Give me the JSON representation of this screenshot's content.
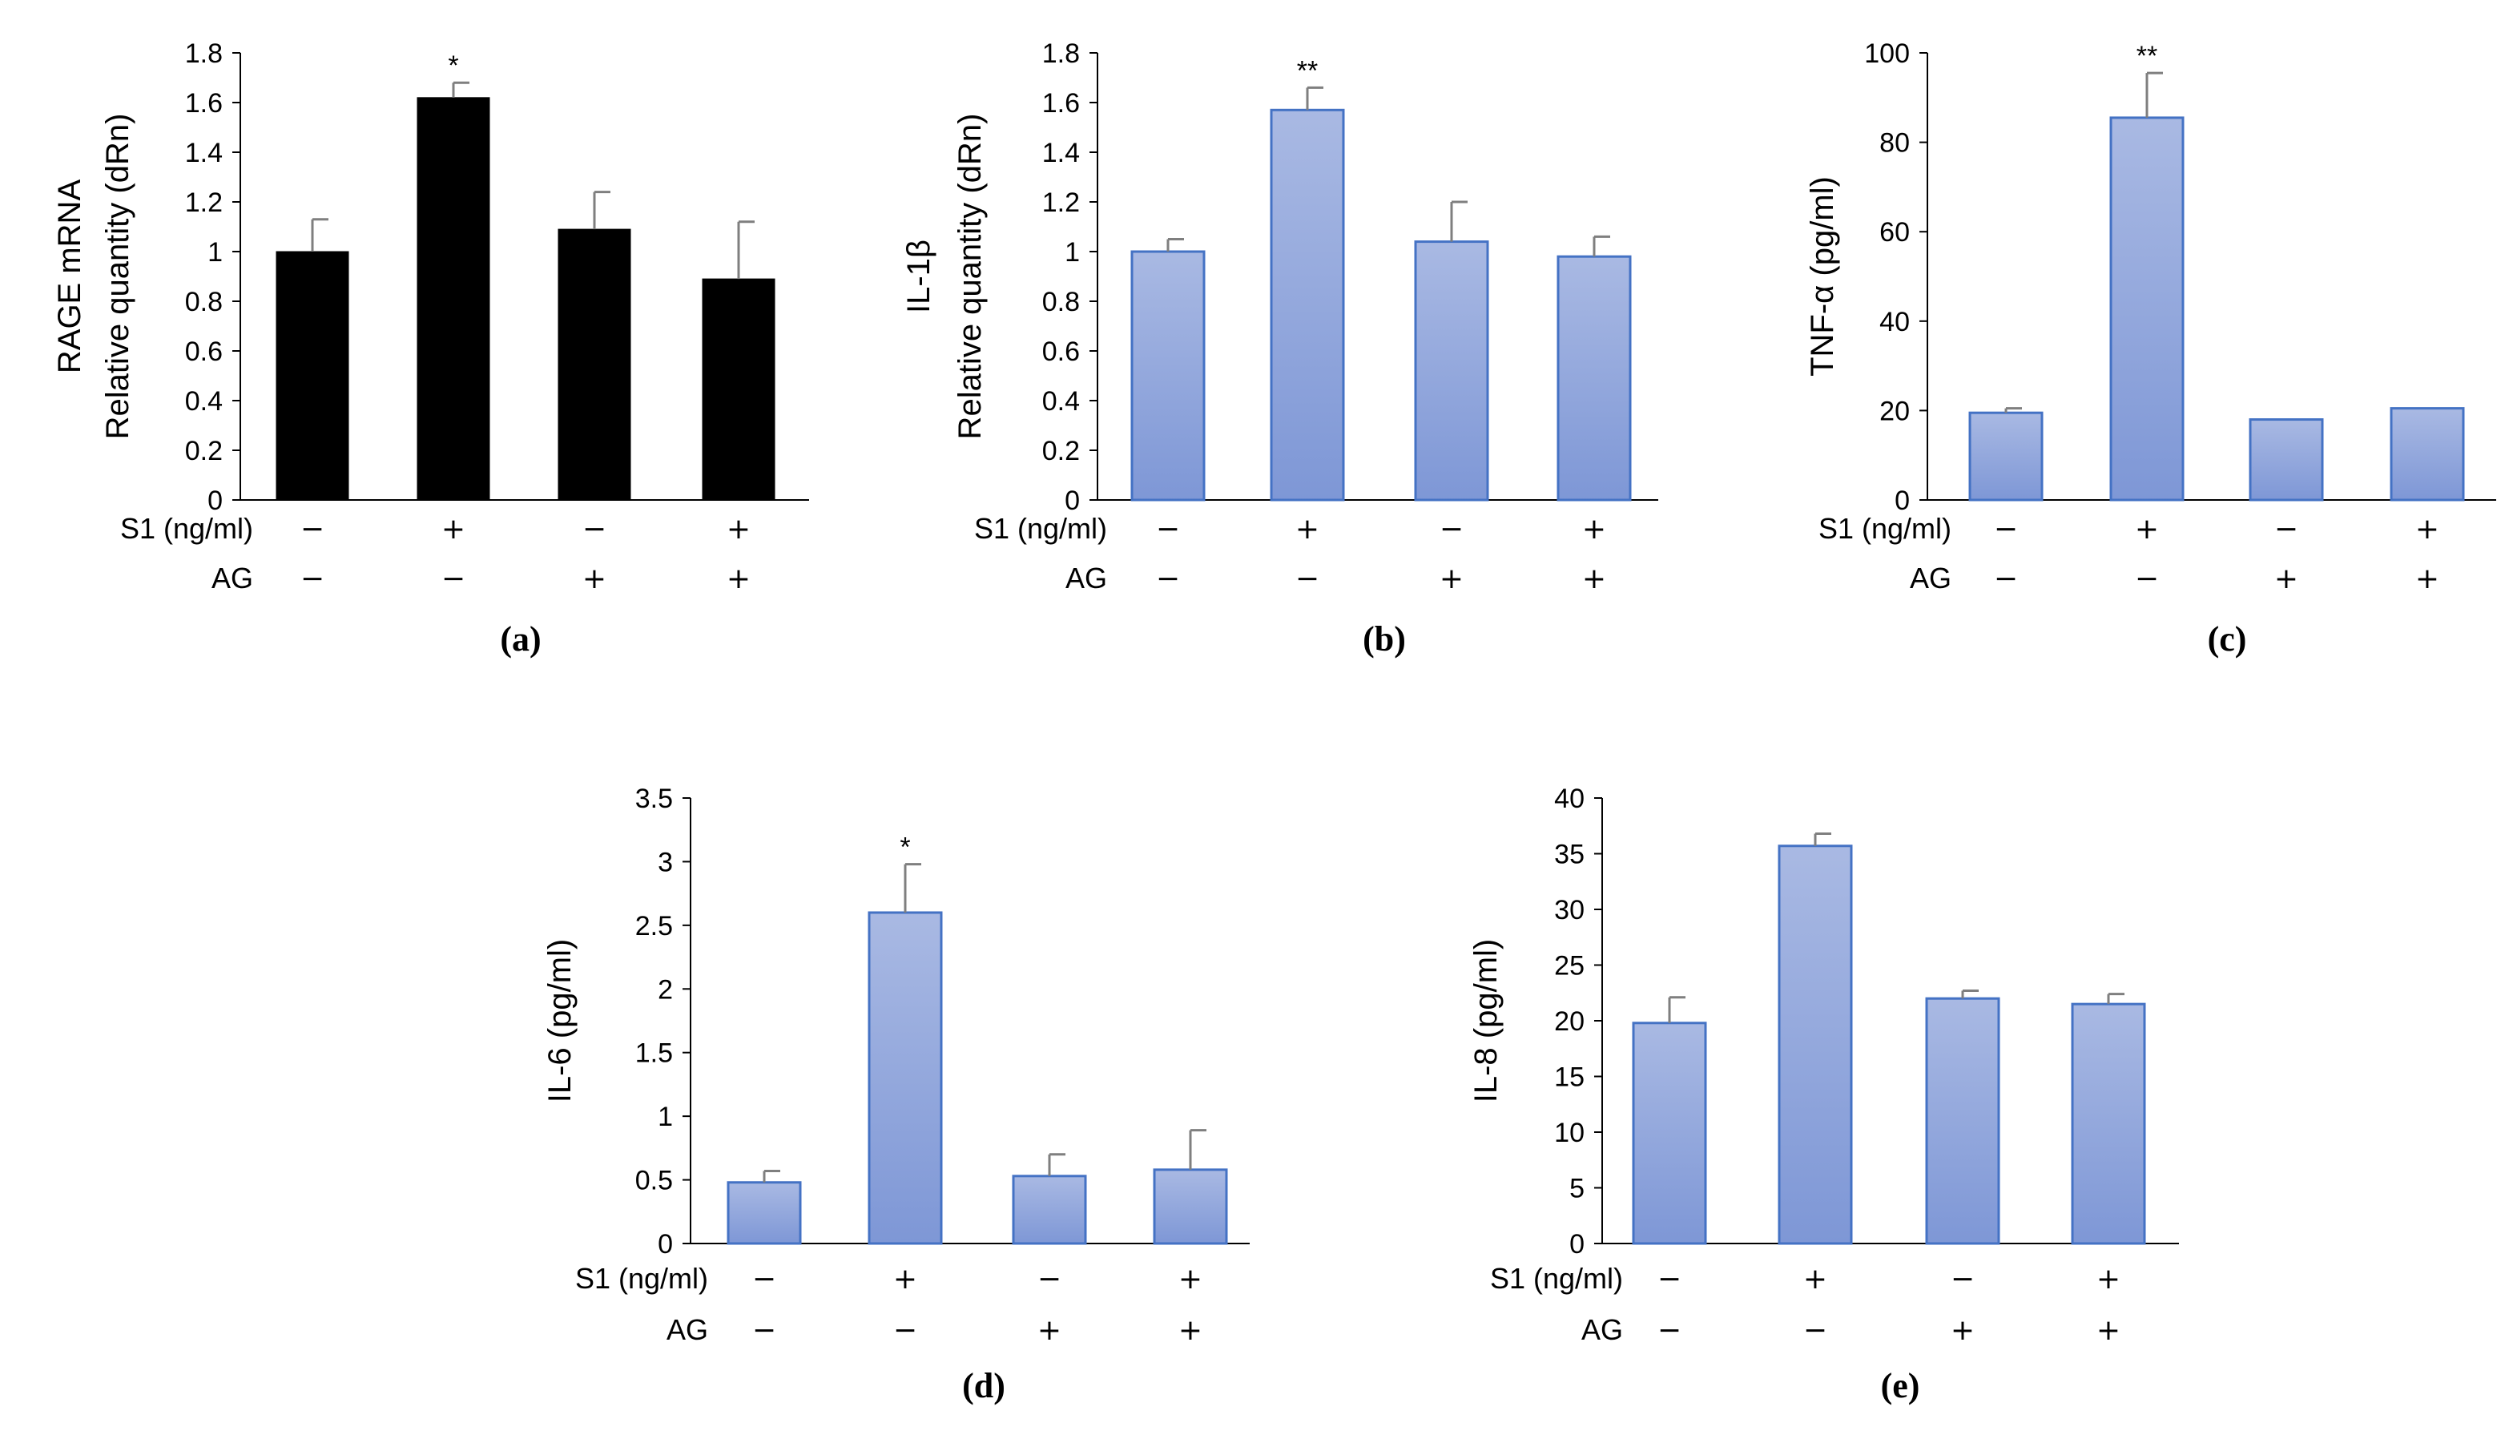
{
  "chart_data": [
    {
      "type": "bar",
      "panel_label": "(a)",
      "ylabel_lines": [
        "RAGE mRNA",
        "Relative quantity (dRn)"
      ],
      "yticks": [
        "0",
        "0.2",
        "0.4",
        "0.6",
        "0.8",
        "1",
        "1.2",
        "1.4",
        "1.6",
        "1.8"
      ],
      "ylim": [
        0,
        1.8
      ],
      "condition_rows": [
        {
          "label": "S1 (ng/ml)",
          "signs": [
            "−",
            "+",
            "−",
            "+"
          ]
        },
        {
          "label": "AG",
          "signs": [
            "−",
            "−",
            "+",
            "+"
          ]
        }
      ],
      "values": [
        1.0,
        1.62,
        1.09,
        0.89
      ],
      "errors": [
        0.13,
        0.06,
        0.15,
        0.23
      ],
      "significance": [
        "",
        "*",
        "",
        ""
      ],
      "bar_color": "#000000",
      "bar_style": "solid"
    },
    {
      "type": "bar",
      "panel_label": "(b)",
      "ylabel_lines": [
        "IL-1β",
        "Relative quantity (dRn)"
      ],
      "yticks": [
        "0",
        "0.2",
        "0.4",
        "0.6",
        "0.8",
        "1",
        "1.2",
        "1.4",
        "1.6",
        "1.8"
      ],
      "ylim": [
        0,
        1.8
      ],
      "condition_rows": [
        {
          "label": "S1 (ng/ml)",
          "signs": [
            "−",
            "+",
            "−",
            "+"
          ]
        },
        {
          "label": "AG",
          "signs": [
            "−",
            "−",
            "+",
            "+"
          ]
        }
      ],
      "values": [
        1.0,
        1.57,
        1.04,
        0.98
      ],
      "errors": [
        0.05,
        0.09,
        0.16,
        0.08
      ],
      "significance": [
        "",
        "**",
        "",
        ""
      ],
      "bar_color": "#8DA3DA",
      "bar_style": "gradient"
    },
    {
      "type": "bar",
      "panel_label": "(c)",
      "ylabel_lines": [
        "TNF-α (pg/ml)"
      ],
      "yticks": [
        "0",
        "20",
        "40",
        "60",
        "80",
        "100"
      ],
      "ylim": [
        0,
        100
      ],
      "condition_rows": [
        {
          "label": "S1 (ng/ml)",
          "signs": [
            "−",
            "+",
            "−",
            "+"
          ]
        },
        {
          "label": "AG",
          "signs": [
            "−",
            "−",
            "+",
            "+"
          ]
        }
      ],
      "values": [
        19.5,
        85.5,
        18.0,
        20.5
      ],
      "errors": [
        1.0,
        10.0,
        0,
        0
      ],
      "significance": [
        "",
        "**",
        "",
        ""
      ],
      "bar_color": "#8DA3DA",
      "bar_style": "gradient"
    },
    {
      "type": "bar",
      "panel_label": "(d)",
      "ylabel_lines": [
        "IL-6 (pg/ml)"
      ],
      "yticks": [
        "0",
        "0.5",
        "1",
        "1.5",
        "2",
        "2.5",
        "3",
        "3.5"
      ],
      "ylim": [
        0,
        3.5
      ],
      "condition_rows": [
        {
          "label": "S1 (ng/ml)",
          "signs": [
            "−",
            "+",
            "−",
            "+"
          ]
        },
        {
          "label": "AG",
          "signs": [
            "−",
            "−",
            "+",
            "+"
          ]
        }
      ],
      "values": [
        0.48,
        2.6,
        0.53,
        0.58
      ],
      "errors": [
        0.09,
        0.38,
        0.17,
        0.31
      ],
      "significance": [
        "",
        "*",
        "",
        ""
      ],
      "bar_color": "#8DA3DA",
      "bar_style": "gradient"
    },
    {
      "type": "bar",
      "panel_label": "(e)",
      "ylabel_lines": [
        "IL-8 (pg/ml)"
      ],
      "yticks": [
        "0",
        "5",
        "10",
        "15",
        "20",
        "25",
        "30",
        "35",
        "40"
      ],
      "ylim": [
        0,
        40
      ],
      "condition_rows": [
        {
          "label": "S1 (ng/ml)",
          "signs": [
            "−",
            "+",
            "−",
            "+"
          ]
        },
        {
          "label": "AG",
          "signs": [
            "−",
            "−",
            "+",
            "+"
          ]
        }
      ],
      "values": [
        19.8,
        35.7,
        22.0,
        21.5
      ],
      "errors": [
        2.3,
        1.1,
        0.7,
        0.9
      ],
      "significance": [
        "",
        "",
        "",
        ""
      ],
      "bar_color": "#8DA3DA",
      "bar_style": "gradient"
    }
  ]
}
